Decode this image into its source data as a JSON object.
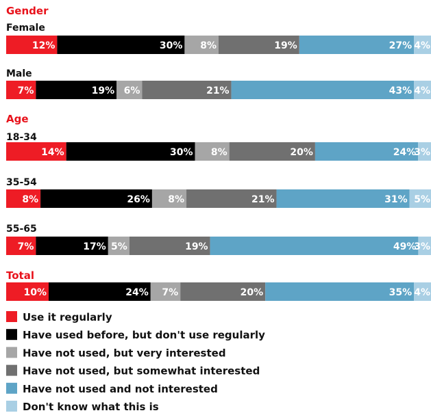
{
  "chart_data": {
    "type": "bar",
    "stacked": true,
    "orientation": "horizontal",
    "normalized_percent": true,
    "series": [
      {
        "name": "Use it regularly",
        "color": "#ee1c25"
      },
      {
        "name": "Have used before, but don't use regularly",
        "color": "#000000"
      },
      {
        "name": "Have not used, but very interested",
        "color": "#a6a6a6"
      },
      {
        "name": "Have not used, but somewhat interested",
        "color": "#707070"
      },
      {
        "name": "Have not used and not interested",
        "color": "#5ea4c6"
      },
      {
        "name": "Don't know what this is",
        "color": "#a9cfe4"
      }
    ],
    "rows": [
      {
        "section": "Gender",
        "label": "Female",
        "values": [
          12,
          30,
          8,
          19,
          27,
          4
        ],
        "labels": [
          "12%",
          "30%",
          "8%",
          "19%",
          "27%",
          "4%"
        ]
      },
      {
        "label": "Male",
        "values": [
          7,
          19,
          6,
          21,
          43,
          4
        ],
        "labels": [
          "7%",
          "19%",
          "6%",
          "21%",
          "43%",
          "4%"
        ]
      },
      {
        "section": "Age",
        "label": "18-34",
        "values": [
          14,
          30,
          8,
          20,
          24,
          3
        ],
        "labels": [
          "14%",
          "30%",
          "8%",
          "20%",
          "24%",
          "3%"
        ]
      },
      {
        "label": "35-54",
        "values": [
          8,
          26,
          8,
          21,
          31,
          5
        ],
        "labels": [
          "8%",
          "26%",
          "8%",
          "21%",
          "31%",
          "5%"
        ]
      },
      {
        "label": "55-65",
        "values": [
          7,
          17,
          5,
          19,
          49,
          3
        ],
        "labels": [
          "7%",
          "17%",
          "5%",
          "19%",
          "49%",
          "3%"
        ]
      },
      {
        "section": "Total",
        "label": "",
        "values": [
          10,
          24,
          7,
          20,
          35,
          4
        ],
        "labels": [
          "10%",
          "24%",
          "7%",
          "20%",
          "35%",
          "4%"
        ]
      }
    ],
    "legend_position": "bottom",
    "grid": false
  }
}
